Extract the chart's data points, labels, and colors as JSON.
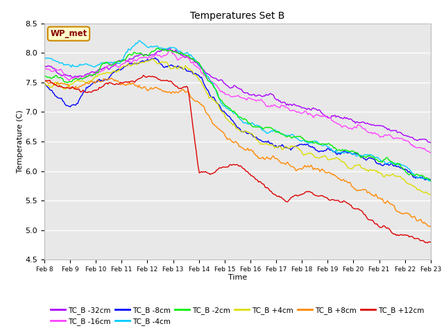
{
  "title": "Temperatures Set B",
  "xlabel": "Time",
  "ylabel": "Temperature (C)",
  "ylim": [
    4.5,
    8.5
  ],
  "background_color": "#e8e8e8",
  "fig_background": "#ffffff",
  "series": {
    "TC_B -32cm": {
      "color": "#aa00ff",
      "lw": 1.0
    },
    "TC_B -16cm": {
      "color": "#ff44ff",
      "lw": 1.0
    },
    "TC_B -8cm": {
      "color": "#0000ff",
      "lw": 1.0
    },
    "TC_B -4cm": {
      "color": "#00ccff",
      "lw": 1.0
    },
    "TC_B -2cm": {
      "color": "#00ee00",
      "lw": 1.0
    },
    "TC_B +4cm": {
      "color": "#dddd00",
      "lw": 1.0
    },
    "TC_B +8cm": {
      "color": "#ff8800",
      "lw": 1.0
    },
    "TC_B +12cm": {
      "color": "#dd0000",
      "lw": 1.0
    }
  },
  "xtick_labels": [
    "Feb 8",
    "Feb 9",
    "Feb 10",
    "Feb 11",
    "Feb 12",
    "Feb 13",
    "Feb 14",
    "Feb 15",
    "Feb 16",
    "Feb 17",
    "Feb 18",
    "Feb 19",
    "Feb 20",
    "Feb 21",
    "Feb 22",
    "Feb 23"
  ],
  "ytick_labels": [
    4.5,
    5.0,
    5.5,
    6.0,
    6.5,
    7.0,
    7.5,
    8.0,
    8.5
  ],
  "wp_met_box_color": "#ffffcc",
  "wp_met_box_edge": "#cc8800",
  "wp_met_text_color": "#880000"
}
